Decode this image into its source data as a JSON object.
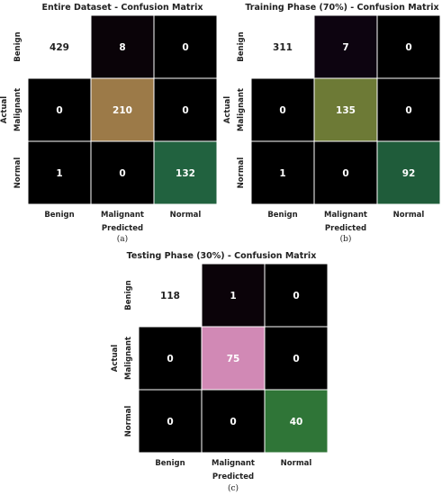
{
  "chart_data": [
    {
      "type": "heatmap",
      "title": "Entire Dataset - Confusion Matrix",
      "xlabel": "Predicted",
      "ylabel": "Actual",
      "caption": "(a)",
      "row_labels": [
        "Benign",
        "Malignant",
        "Normal"
      ],
      "col_labels": [
        "Benign",
        "Malignant",
        "Normal"
      ],
      "values": [
        [
          429,
          8,
          0
        ],
        [
          0,
          210,
          0
        ],
        [
          1,
          0,
          132
        ]
      ],
      "cell_colors": [
        [
          "#ffffff",
          "#0a0308",
          "#000000"
        ],
        [
          "#000000",
          "#9c7a48",
          "#000000"
        ],
        [
          "#000000",
          "#000000",
          "#21623f"
        ]
      ]
    },
    {
      "type": "heatmap",
      "title": "Training Phase (70%) - Confusion Matrix",
      "xlabel": "Predicted",
      "ylabel": "Actual",
      "caption": "(b)",
      "row_labels": [
        "Benign",
        "Malignant",
        "Normal"
      ],
      "col_labels": [
        "Benign",
        "Malignant",
        "Normal"
      ],
      "values": [
        [
          311,
          7,
          0
        ],
        [
          0,
          135,
          0
        ],
        [
          1,
          0,
          92
        ]
      ],
      "cell_colors": [
        [
          "#ffffff",
          "#0d0410",
          "#000000"
        ],
        [
          "#000000",
          "#6d7a36",
          "#000000"
        ],
        [
          "#000000",
          "#000000",
          "#1f5c3a"
        ]
      ]
    },
    {
      "type": "heatmap",
      "title": "Testing Phase (30%) - Confusion Matrix",
      "xlabel": "Predicted",
      "ylabel": "Actual",
      "caption": "(c)",
      "row_labels": [
        "Benign",
        "Malignant",
        "Normal"
      ],
      "col_labels": [
        "Benign",
        "Malignant",
        "Normal"
      ],
      "values": [
        [
          118,
          1,
          0
        ],
        [
          0,
          75,
          0
        ],
        [
          0,
          0,
          40
        ]
      ],
      "cell_colors": [
        [
          "#ffffff",
          "#0b0309",
          "#000000"
        ],
        [
          "#000000",
          "#d189b5",
          "#000000"
        ],
        [
          "#000000",
          "#000000",
          "#2f7537"
        ]
      ]
    }
  ]
}
